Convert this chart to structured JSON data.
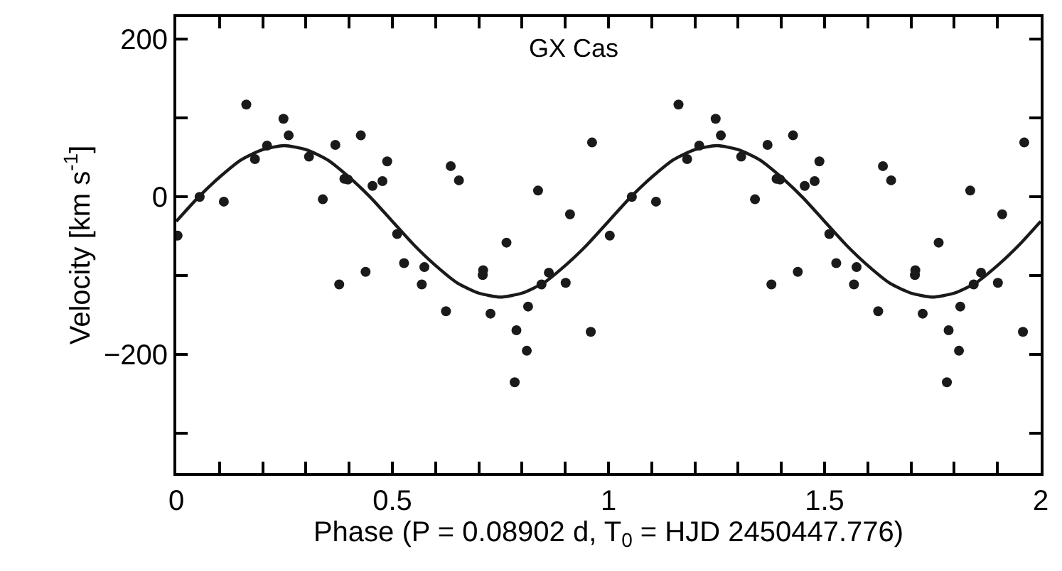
{
  "chart_data": {
    "type": "scatter",
    "title": "GX Cas",
    "xlabel": "Phase (P = 0.08902 d, T$_{0}$ = HJD 2450447.776)",
    "ylabel": "Velocity [km s$^{-1}$]",
    "series": [
      {
        "color": "#1a1a1a",
        "marker": "circle",
        "x": [
          0.003,
          0.054,
          0.11,
          0.162,
          0.182,
          0.21,
          0.248,
          0.26,
          0.307,
          0.339,
          0.368,
          0.377,
          0.389,
          0.397,
          0.427,
          0.438,
          0.454,
          0.477,
          0.488,
          0.511,
          0.527,
          0.568,
          0.574,
          0.624,
          0.635,
          0.654,
          0.71,
          0.709,
          0.727,
          0.764,
          0.783,
          0.787,
          0.811,
          0.814,
          0.837,
          0.845,
          0.862,
          0.901,
          0.911,
          0.959,
          0.962,
          1.003,
          1.054,
          1.11,
          1.162,
          1.182,
          1.21,
          1.248,
          1.26,
          1.307,
          1.339,
          1.368,
          1.377,
          1.389,
          1.397,
          1.427,
          1.438,
          1.454,
          1.477,
          1.488,
          1.511,
          1.527,
          1.568,
          1.574,
          1.624,
          1.635,
          1.654,
          1.71,
          1.709,
          1.727,
          1.764,
          1.783,
          1.787,
          1.811,
          1.814,
          1.837,
          1.845,
          1.862,
          1.901,
          1.911,
          1.959,
          1.962
        ],
        "values": [
          -49,
          0,
          -6,
          117,
          48,
          65,
          99,
          78,
          51,
          -3,
          66,
          -111,
          23,
          22,
          78,
          -95,
          14,
          20,
          45,
          -47,
          -84,
          -111,
          -89,
          -145,
          39,
          21,
          -93,
          -99,
          -148,
          -58,
          -235,
          -169,
          -195,
          -139,
          8,
          -111,
          -96,
          -109,
          -22,
          -171,
          69,
          -49,
          0,
          -6,
          117,
          48,
          65,
          99,
          78,
          51,
          -3,
          66,
          -111,
          23,
          22,
          78,
          -95,
          14,
          20,
          45,
          -47,
          -84,
          -111,
          -89,
          -145,
          39,
          21,
          -93,
          -99,
          -148,
          -58,
          -235,
          -169,
          -195,
          -139,
          8,
          -111,
          -96,
          -109,
          -22,
          -171,
          69
        ]
      },
      {
        "type": "line",
        "color": "#1a1a1a",
        "marker": "none",
        "line_style": "solid",
        "x": [
          0,
          0.05,
          0.1,
          0.15,
          0.2,
          0.25,
          0.3,
          0.35,
          0.4,
          0.45,
          0.5,
          0.55,
          0.6,
          0.65,
          0.7,
          0.75,
          0.8,
          0.85,
          0.9,
          0.95,
          1,
          1.05,
          1.1,
          1.15,
          1.2,
          1.25,
          1.3,
          1.35,
          1.4,
          1.45,
          1.5,
          1.55,
          1.6,
          1.65,
          1.7,
          1.75,
          1.8,
          1.85,
          1.9,
          1.95,
          2
        ],
        "values": [
          -31,
          -1,
          25,
          47,
          60,
          65,
          60,
          47,
          25,
          -1,
          -31,
          -61,
          -87,
          -109,
          -122,
          -127,
          -122,
          -109,
          -87,
          -61,
          -31,
          -1,
          25,
          47,
          60,
          65,
          60,
          47,
          25,
          -1,
          -31,
          -61,
          -87,
          -109,
          -122,
          -127,
          -122,
          -109,
          -87,
          -61,
          -31
        ]
      }
    ],
    "xlim": [
      0,
      2
    ],
    "ylim": [
      -350,
      228
    ],
    "xticks": [
      0,
      {
        "value": 0.1,
        "label": null
      },
      {
        "value": 0.2,
        "label": null
      },
      {
        "value": 0.3,
        "label": null
      },
      {
        "value": 0.4,
        "label": null
      },
      0.5,
      {
        "value": 0.6,
        "label": null
      },
      {
        "value": 0.7,
        "label": null
      },
      {
        "value": 0.8,
        "label": null
      },
      {
        "value": 0.9,
        "label": null
      },
      1,
      {
        "value": 1.1,
        "label": null
      },
      {
        "value": 1.2,
        "label": null
      },
      {
        "value": 1.3,
        "label": null
      },
      {
        "value": 1.4,
        "label": null
      },
      1.5,
      {
        "value": 1.6,
        "label": null
      },
      {
        "value": 1.7,
        "label": null
      },
      {
        "value": 1.8,
        "label": null
      },
      {
        "value": 1.9,
        "label": null
      },
      2
    ],
    "yticks": [
      {
        "value": -300,
        "label": null
      },
      {
        "value": -200,
        "label": "−200"
      },
      {
        "value": -100,
        "label": null
      },
      0,
      {
        "value": 100,
        "label": null
      },
      200
    ],
    "tick_labels": "xy"
  }
}
